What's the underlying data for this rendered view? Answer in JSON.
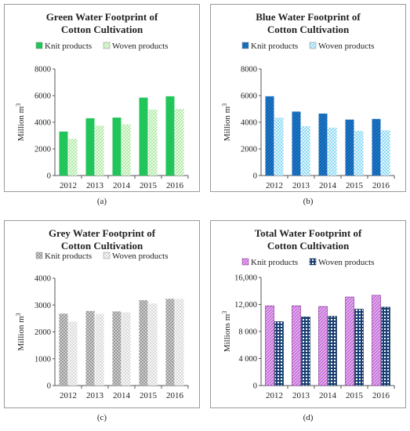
{
  "chart_data": [
    {
      "type": "bar",
      "title": "Green Water Footprint of Cotton Cultivation",
      "ylabel": "Million m³",
      "ylim": [
        0,
        8000
      ],
      "yticks": [
        0,
        2000,
        4000,
        6000,
        8000
      ],
      "ytick_labels": [
        "0",
        "2000",
        "4000",
        "6000",
        "8000"
      ],
      "categories": [
        "2012",
        "2013",
        "2014",
        "2015",
        "2016"
      ],
      "series": [
        {
          "name": "Knit products",
          "values": [
            3300,
            4300,
            4350,
            5850,
            5950
          ]
        },
        {
          "name": "Woven products",
          "values": [
            2750,
            3750,
            3850,
            4950,
            5000
          ]
        }
      ],
      "legend": "top",
      "grid": false,
      "caption": "(a)",
      "colors": {
        "knit": "#22c55a",
        "woven": "#9be58c"
      }
    },
    {
      "type": "bar",
      "title": "Blue Water Footprint of Cotton Cultivation",
      "ylabel": "Million m³",
      "ylim": [
        0,
        8000
      ],
      "yticks": [
        0,
        2000,
        4000,
        6000,
        8000
      ],
      "ytick_labels": [
        "0",
        "2000",
        "4000",
        "6000",
        "8000"
      ],
      "categories": [
        "2012",
        "2013",
        "2014",
        "2015",
        "2016"
      ],
      "series": [
        {
          "name": "Knit products",
          "values": [
            5950,
            4800,
            4650,
            4200,
            4250
          ]
        },
        {
          "name": "Woven products",
          "values": [
            4350,
            3700,
            3600,
            3350,
            3400
          ]
        }
      ],
      "legend": "top",
      "grid": false,
      "caption": "(b)",
      "colors": {
        "knit": "#1e7fd0",
        "woven": "#6fd0f2"
      }
    },
    {
      "type": "bar",
      "title": "Grey Water Footprint of Cotton Cultivation",
      "ylabel": "Million m³",
      "ylim": [
        0,
        4000
      ],
      "yticks": [
        0,
        1000,
        2000,
        3000,
        4000
      ],
      "ytick_labels": [
        "0",
        "1000",
        "2000",
        "3000",
        "4000"
      ],
      "categories": [
        "2012",
        "2013",
        "2014",
        "2015",
        "2016"
      ],
      "series": [
        {
          "name": "Knit products",
          "values": [
            2680,
            2780,
            2760,
            3180,
            3230
          ]
        },
        {
          "name": "Woven products",
          "values": [
            2390,
            2670,
            2730,
            3060,
            3230
          ]
        }
      ],
      "legend": "top",
      "grid": false,
      "caption": "(c)",
      "colors": {
        "knit": "#888888",
        "woven": "#d2d2d2"
      }
    },
    {
      "type": "bar",
      "title": "Total Water Footprint of Cotton Cultivation",
      "ylabel": "Millions m³",
      "ylim": [
        0,
        16000
      ],
      "yticks": [
        0,
        4000,
        8000,
        12000,
        16000
      ],
      "ytick_labels": [
        "0",
        "4 000",
        "8 000",
        "12,000",
        "16,000"
      ],
      "categories": [
        "2012",
        "2013",
        "2014",
        "2015",
        "2016"
      ],
      "series": [
        {
          "name": "Knit products",
          "values": [
            11800,
            11800,
            11700,
            13100,
            13350
          ]
        },
        {
          "name": "Woven products",
          "values": [
            9450,
            10150,
            10250,
            11300,
            11600
          ]
        }
      ],
      "legend": "top",
      "grid": false,
      "caption": "(d)",
      "colors": {
        "knit": "#c86edb",
        "woven": "#173f74"
      }
    }
  ]
}
